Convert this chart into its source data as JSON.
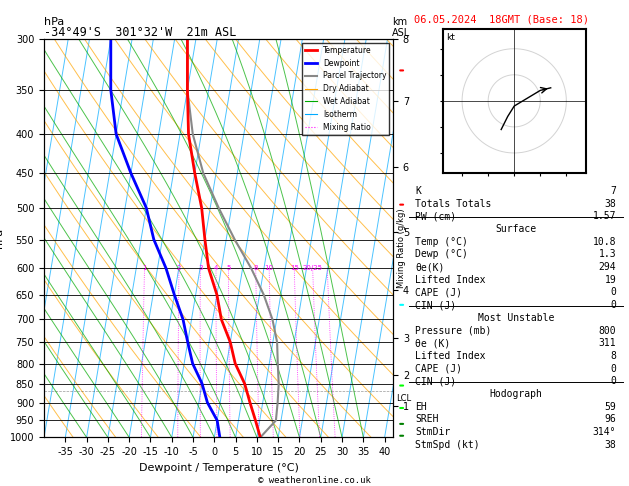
{
  "title_left": "-34°49'S  301°32'W  21m ASL",
  "title_right": "06.05.2024  18GMT (Base: 18)",
  "xlabel": "Dewpoint / Temperature (°C)",
  "ylabel_left": "hPa",
  "ylabel_mixing": "Mixing Ratio (g/kg)",
  "pressure_levels": [
    300,
    350,
    400,
    450,
    500,
    550,
    600,
    650,
    700,
    750,
    800,
    850,
    900,
    950,
    1000
  ],
  "xlim": [
    -40,
    42
  ],
  "pressure_min": 300,
  "pressure_max": 1000,
  "km_ticks": [
    1,
    2,
    3,
    4,
    5,
    6,
    7,
    8
  ],
  "km_pressures": [
    895,
    800,
    700,
    590,
    480,
    380,
    300,
    240
  ],
  "lcl_pressure": 870,
  "lcl_label": "LCL",
  "skew_factor": 30,
  "legend_items": [
    {
      "label": "Temperature",
      "color": "#FF0000",
      "lw": 2,
      "ls": "-"
    },
    {
      "label": "Dewpoint",
      "color": "#0000FF",
      "lw": 2,
      "ls": "-"
    },
    {
      "label": "Parcel Trajectory",
      "color": "#888888",
      "lw": 1.5,
      "ls": "-"
    },
    {
      "label": "Dry Adiabat",
      "color": "#FFA500",
      "lw": 0.8,
      "ls": "-"
    },
    {
      "label": "Wet Adiabat",
      "color": "#00AA00",
      "lw": 0.8,
      "ls": "-"
    },
    {
      "label": "Isotherm",
      "color": "#00AAFF",
      "lw": 0.8,
      "ls": "-"
    },
    {
      "label": "Mixing Ratio",
      "color": "#FF00FF",
      "lw": 0.8,
      "ls": ":"
    }
  ],
  "sounding_temp": [
    -22,
    -20,
    -18,
    -15,
    -12,
    -10,
    -8,
    -5,
    -3,
    0,
    2,
    5,
    7,
    9,
    10.8
  ],
  "sounding_pres": [
    300,
    350,
    400,
    450,
    500,
    550,
    600,
    650,
    700,
    750,
    800,
    850,
    900,
    950,
    1000
  ],
  "sounding_dewp": [
    -40,
    -38,
    -35,
    -30,
    -25,
    -22,
    -18,
    -15,
    -12,
    -10,
    -8,
    -5,
    -3,
    0,
    1.3
  ],
  "parcel_temp": [
    -22,
    -20,
    -17,
    -13,
    -8,
    -3,
    2,
    6,
    9,
    11,
    12,
    13,
    13.5,
    13.8,
    10.8
  ],
  "parcel_pres": [
    300,
    350,
    400,
    450,
    500,
    550,
    600,
    650,
    700,
    750,
    800,
    850,
    900,
    950,
    1000
  ],
  "table_rows": [
    {
      "label": "K",
      "value": "7",
      "type": "data"
    },
    {
      "label": "Totals Totals",
      "value": "38",
      "type": "data"
    },
    {
      "label": "PW (cm)",
      "value": "1.57",
      "type": "data"
    },
    {
      "label": "Surface",
      "value": "",
      "type": "header"
    },
    {
      "label": "Temp (°C)",
      "value": "10.8",
      "type": "data"
    },
    {
      "label": "Dewp (°C)",
      "value": "1.3",
      "type": "data"
    },
    {
      "label": "θe(K)",
      "value": "294",
      "type": "data"
    },
    {
      "label": "Lifted Index",
      "value": "19",
      "type": "data"
    },
    {
      "label": "CAPE (J)",
      "value": "0",
      "type": "data"
    },
    {
      "label": "CIN (J)",
      "value": "0",
      "type": "data"
    },
    {
      "label": "Most Unstable",
      "value": "",
      "type": "header"
    },
    {
      "label": "Pressure (mb)",
      "value": "800",
      "type": "data"
    },
    {
      "label": "θe (K)",
      "value": "311",
      "type": "data"
    },
    {
      "label": "Lifted Index",
      "value": "8",
      "type": "data"
    },
    {
      "label": "CAPE (J)",
      "value": "0",
      "type": "data"
    },
    {
      "label": "CIN (J)",
      "value": "0",
      "type": "data"
    },
    {
      "label": "Hodograph",
      "value": "",
      "type": "header"
    },
    {
      "label": "EH",
      "value": "59",
      "type": "data"
    },
    {
      "label": "SREH",
      "value": "96",
      "type": "data"
    },
    {
      "label": "StmDir",
      "value": "314°",
      "type": "data"
    },
    {
      "label": "StmSpd (kt)",
      "value": "38",
      "type": "data"
    }
  ],
  "hline_before": [
    3,
    10,
    16
  ],
  "bg_color": "#FFFFFF",
  "footer": "© weatheronline.co.uk"
}
